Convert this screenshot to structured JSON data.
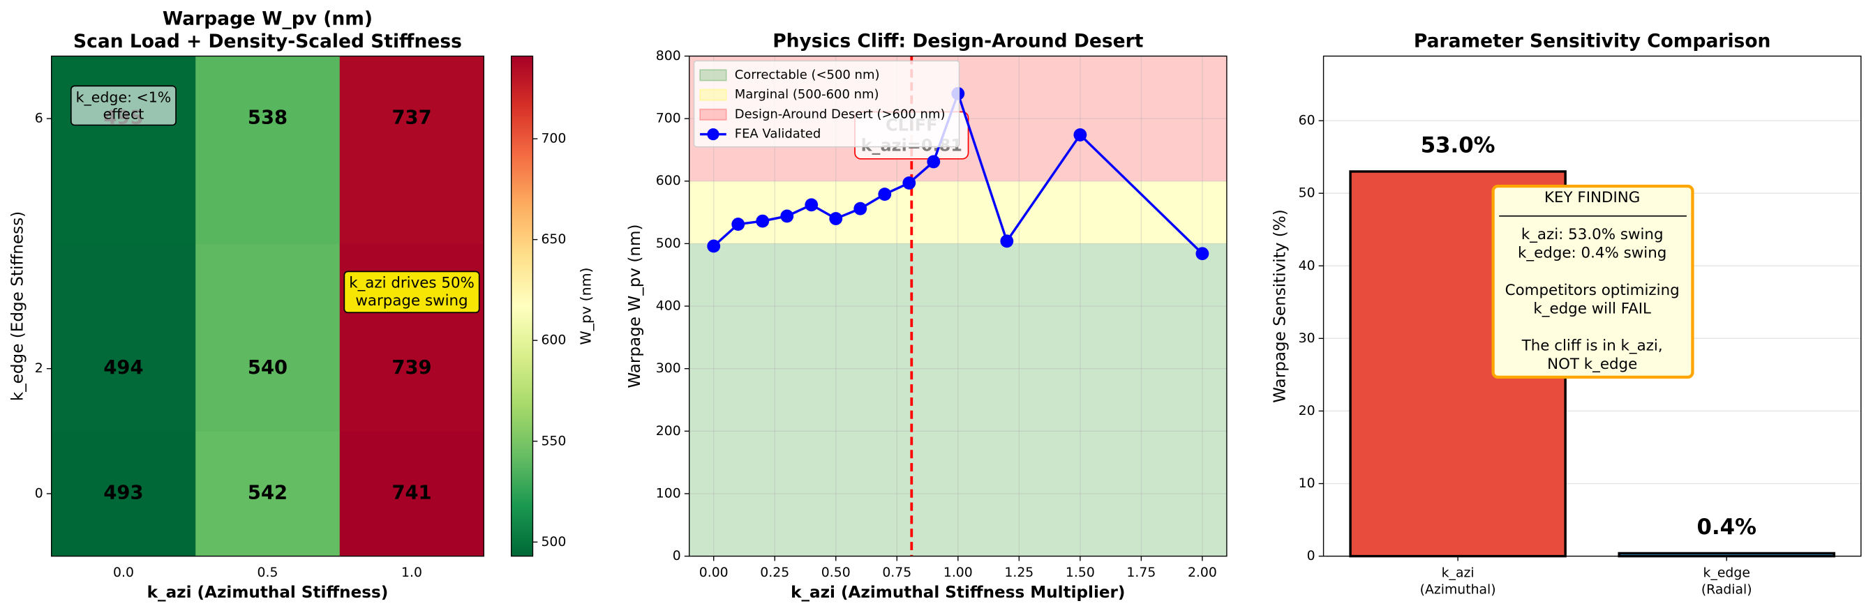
{
  "chart_data": [
    {
      "type": "heatmap",
      "title": "Warpage W_pv (nm)\nScan Load + Density-Scaled Stiffness",
      "x_label": "k_azi (Azimuthal Stiffness)",
      "y_label": "k_edge (Edge Stiffness)",
      "categories": [
        "0.0",
        "0.5",
        "1.0"
      ],
      "y": [
        0,
        2,
        6
      ],
      "ylim": [
        -1,
        7
      ],
      "yticks": [
        0,
        2,
        6
      ],
      "values": [
        [
          493,
          542,
          741
        ],
        [
          494,
          540,
          739
        ],
        [
          495,
          538,
          737
        ]
      ],
      "colormap": "RdYlGn_r",
      "clim": [
        493,
        741
      ],
      "cticks": [
        500,
        550,
        600,
        650,
        700
      ],
      "colorbar_label": "W_pv (nm)",
      "annotations": [
        "k_edge: <1%\neffect",
        "k_azi drives 50%\nwarpage swing"
      ]
    },
    {
      "type": "line",
      "title": "Physics Cliff: Design-Around Desert",
      "x_label": "k_azi (Azimuthal Stiffness Multiplier)",
      "y_label": "Warpage W_pv (nm)",
      "x": [
        0,
        0.1,
        0.2,
        0.3,
        0.4,
        0.5,
        0.6,
        0.7,
        0.8,
        0.9,
        1.0,
        1.2,
        1.5,
        2.0
      ],
      "series": [
        {
          "name": "FEA Validated",
          "color": "blue",
          "values": [
            496,
            531,
            536,
            544,
            562,
            540,
            556,
            579,
            597,
            631,
            740,
            504,
            674,
            484
          ]
        }
      ],
      "bands": [
        {
          "name": "Correctable (<500 nm)",
          "from": 0,
          "to": 500,
          "color": "green"
        },
        {
          "name": "Marginal (500-600 nm)",
          "from": 500,
          "to": 600,
          "color": "yellow"
        },
        {
          "name": "Design-Around Desert (>600 nm)",
          "from": 600,
          "to": 800,
          "color": "red"
        }
      ],
      "vline": {
        "x": 0.81,
        "color": "red",
        "label": "CLIFF\nk_azi=0.81"
      },
      "xlim": [
        -0.1,
        2.1
      ],
      "ylim": [
        0,
        800
      ],
      "xticks": [
        {
          "value": 0,
          "label": "0.00"
        },
        0.25,
        {
          "value": 0.5,
          "label": "0.50"
        },
        0.75,
        {
          "value": 1,
          "label": "1.00"
        },
        1.25,
        {
          "value": 1.5,
          "label": "1.50"
        },
        1.75,
        {
          "value": 2,
          "label": "2.00"
        }
      ],
      "yticks": [
        0,
        100,
        200,
        300,
        400,
        500,
        600,
        700,
        800
      ],
      "grid": true,
      "legend": "upper left"
    },
    {
      "type": "bar",
      "title": "Parameter Sensitivity Comparison",
      "y_label": "Warpage Sensitivity (%)",
      "categories": [
        "k_azi\n(Azimuthal)",
        "k_edge\n(Radial)"
      ],
      "values": [
        53.0,
        0.4
      ],
      "value_labels": [
        "53.0%",
        "0.4%"
      ],
      "colors": [
        "#e74c3c",
        "#3498db"
      ],
      "ylim": [
        0,
        68.9
      ],
      "yticks": [
        0,
        10,
        20,
        30,
        40,
        50,
        60
      ],
      "grid": true,
      "annotation_title": "KEY FINDING",
      "annotation": "k_azi: 53.0% swing\nk_edge: 0.4% swing\n\nCompetitors optimizing\nk_edge will FAIL\n\nThe cliff is in k_azi,\nNOT k_edge"
    }
  ]
}
